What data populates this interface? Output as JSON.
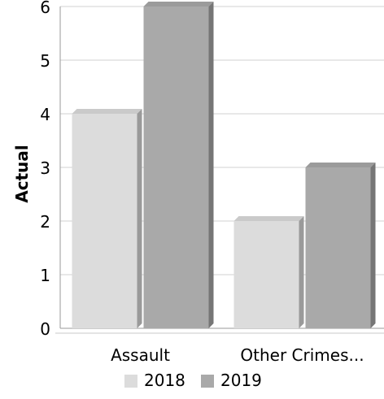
{
  "chart_data": {
    "type": "bar",
    "title": "",
    "xlabel": "",
    "ylabel": "Actual",
    "ylim": [
      0,
      6
    ],
    "yticks": [
      0,
      1,
      2,
      3,
      4,
      5,
      6
    ],
    "grid": true,
    "legend_position": "bottom",
    "categories": [
      "Assault",
      "Other Crimes..."
    ],
    "series": [
      {
        "name": "2018",
        "values": [
          4,
          2
        ],
        "color": "#dcdcdc"
      },
      {
        "name": "2019",
        "values": [
          6,
          3
        ],
        "color": "#a9a9a9"
      }
    ]
  }
}
